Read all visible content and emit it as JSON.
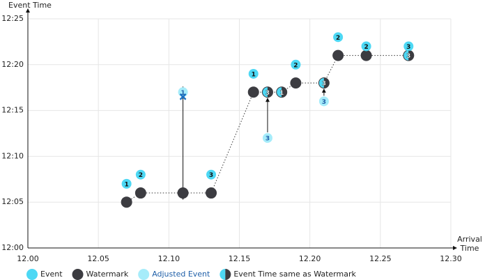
{
  "chart_data": {
    "type": "scatter",
    "y_label": "Event Time",
    "x_label": "Arrival Time",
    "xlim": [
      12.0,
      12.3
    ],
    "xticks": [
      {
        "value": 12.0,
        "label": "12.00"
      },
      12.05,
      {
        "value": 12.1,
        "label": "12.10"
      },
      12.15,
      {
        "value": 12.2,
        "label": "12.20"
      },
      12.25,
      {
        "value": 12.3,
        "label": "12.30"
      }
    ],
    "ylim": [
      12.0,
      12.25
    ],
    "yticks": [
      {
        "value": 12.0,
        "label": "12:00"
      },
      {
        "value": 12.05,
        "label": "12:05"
      },
      {
        "value": 12.1,
        "label": "12:10"
      },
      {
        "value": 12.15,
        "label": "12:15"
      },
      {
        "value": 12.2,
        "label": "12:20"
      },
      {
        "value": 12.25,
        "label": "12:25"
      }
    ],
    "grid": true,
    "series": [
      {
        "name": "Event",
        "color": "#4dd8f4",
        "x": [
          12.07,
          12.08,
          12.13,
          12.16,
          12.19,
          12.22,
          12.24,
          12.27
        ],
        "values": [
          12.07,
          12.08,
          12.08,
          12.19,
          12.2,
          12.23,
          12.22,
          12.22
        ],
        "labels": [
          "1",
          "2",
          "3",
          "1",
          "2",
          "2",
          "2",
          "3"
        ]
      },
      {
        "name": "Watermark",
        "color": "#3c3c41",
        "x": [
          12.07,
          12.08,
          12.11,
          12.13,
          12.16,
          12.17,
          12.18,
          12.19,
          12.21,
          12.22,
          12.24,
          12.27
        ],
        "values": [
          12.05,
          12.06,
          12.06,
          12.06,
          12.17,
          12.17,
          12.17,
          12.18,
          12.18,
          12.21,
          12.21,
          12.21
        ]
      },
      {
        "name": "Adjusted Event",
        "color": "#a6ecfa",
        "text_color": "#1f5fa8",
        "x": [
          12.11,
          12.17,
          12.21
        ],
        "values": [
          12.17,
          12.12,
          12.16
        ],
        "labels": [
          "1",
          "3",
          "3"
        ]
      },
      {
        "name": "Event Time same as Watermark",
        "color": "#4dd8f4",
        "x": [
          12.17,
          12.18,
          12.21,
          12.27
        ],
        "values": [
          12.17,
          12.17,
          12.18,
          12.21
        ],
        "labels": [
          "3",
          "1",
          "3",
          "3"
        ]
      }
    ],
    "dropped": {
      "x": 12.11,
      "y": 12.165,
      "color": "#1b6fc0"
    }
  }
}
